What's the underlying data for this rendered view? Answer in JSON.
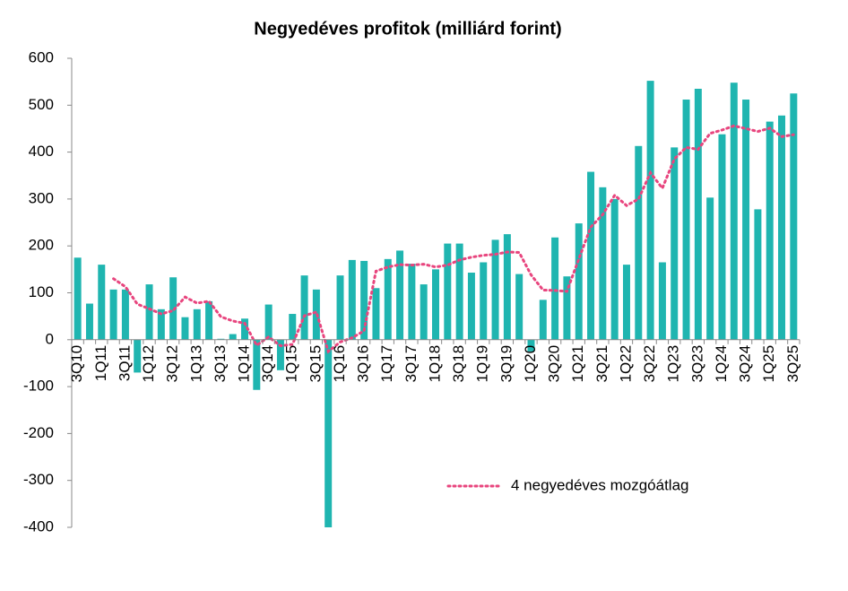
{
  "chart_data": {
    "type": "bar",
    "title": "Negyedéves profitok (milliárd forint)",
    "categories": [
      "3Q10",
      null,
      "1Q11",
      null,
      "3Q11",
      null,
      "1Q12",
      null,
      "3Q12",
      null,
      "1Q13",
      null,
      "3Q13",
      null,
      "1Q14",
      null,
      "3Q14",
      null,
      "1Q15",
      null,
      "3Q15",
      null,
      "1Q16",
      null,
      "3Q16",
      null,
      "1Q17",
      null,
      "3Q17",
      null,
      "1Q18",
      null,
      "3Q18",
      null,
      "1Q19",
      null,
      "3Q19",
      null,
      "1Q20",
      null,
      "3Q20",
      null,
      "1Q21",
      null,
      "3Q21",
      null,
      "1Q22",
      null,
      "3Q22",
      null,
      "1Q23",
      null,
      "3Q23",
      null,
      "1Q24",
      null,
      "3Q24",
      null,
      "1Q25",
      null,
      "3Q25"
    ],
    "series": [
      {
        "type": "bar",
        "color": "#1fb5b0",
        "values": [
          175,
          77,
          160,
          107,
          107,
          -70,
          118,
          65,
          133,
          48,
          65,
          82,
          2,
          12,
          45,
          -107,
          75,
          -65,
          55,
          137,
          107,
          -400,
          137,
          170,
          168,
          110,
          172,
          190,
          162,
          118,
          150,
          205,
          205,
          143,
          165,
          213,
          225,
          140,
          -25,
          85,
          218,
          135,
          248,
          358,
          325,
          300,
          160,
          413,
          552,
          165,
          410,
          512,
          535,
          303,
          438,
          548,
          512,
          278,
          465,
          478,
          525
        ]
      },
      {
        "type": "line",
        "name": "4 negyedéves mozgóátlag",
        "color": "#e8457e",
        "values": [
          null,
          null,
          null,
          130,
          113,
          76,
          66,
          55,
          62,
          91,
          78,
          82,
          49,
          40,
          35,
          -12,
          6,
          -13,
          -10,
          51,
          59,
          -25,
          -5,
          4,
          19,
          146,
          155,
          160,
          159,
          161,
          155,
          159,
          170,
          176,
          180,
          182,
          187,
          186,
          138,
          106,
          105,
          103,
          172,
          240,
          267,
          308,
          286,
          300,
          356,
          323,
          385,
          410,
          406,
          440,
          447,
          456,
          450,
          444,
          451,
          433,
          437
        ]
      }
    ],
    "ylim": [
      -400,
      600
    ],
    "yticks": [
      -400,
      -300,
      -200,
      -100,
      0,
      100,
      200,
      300,
      400,
      500,
      600
    ],
    "grid": false,
    "legend": "lower right"
  }
}
